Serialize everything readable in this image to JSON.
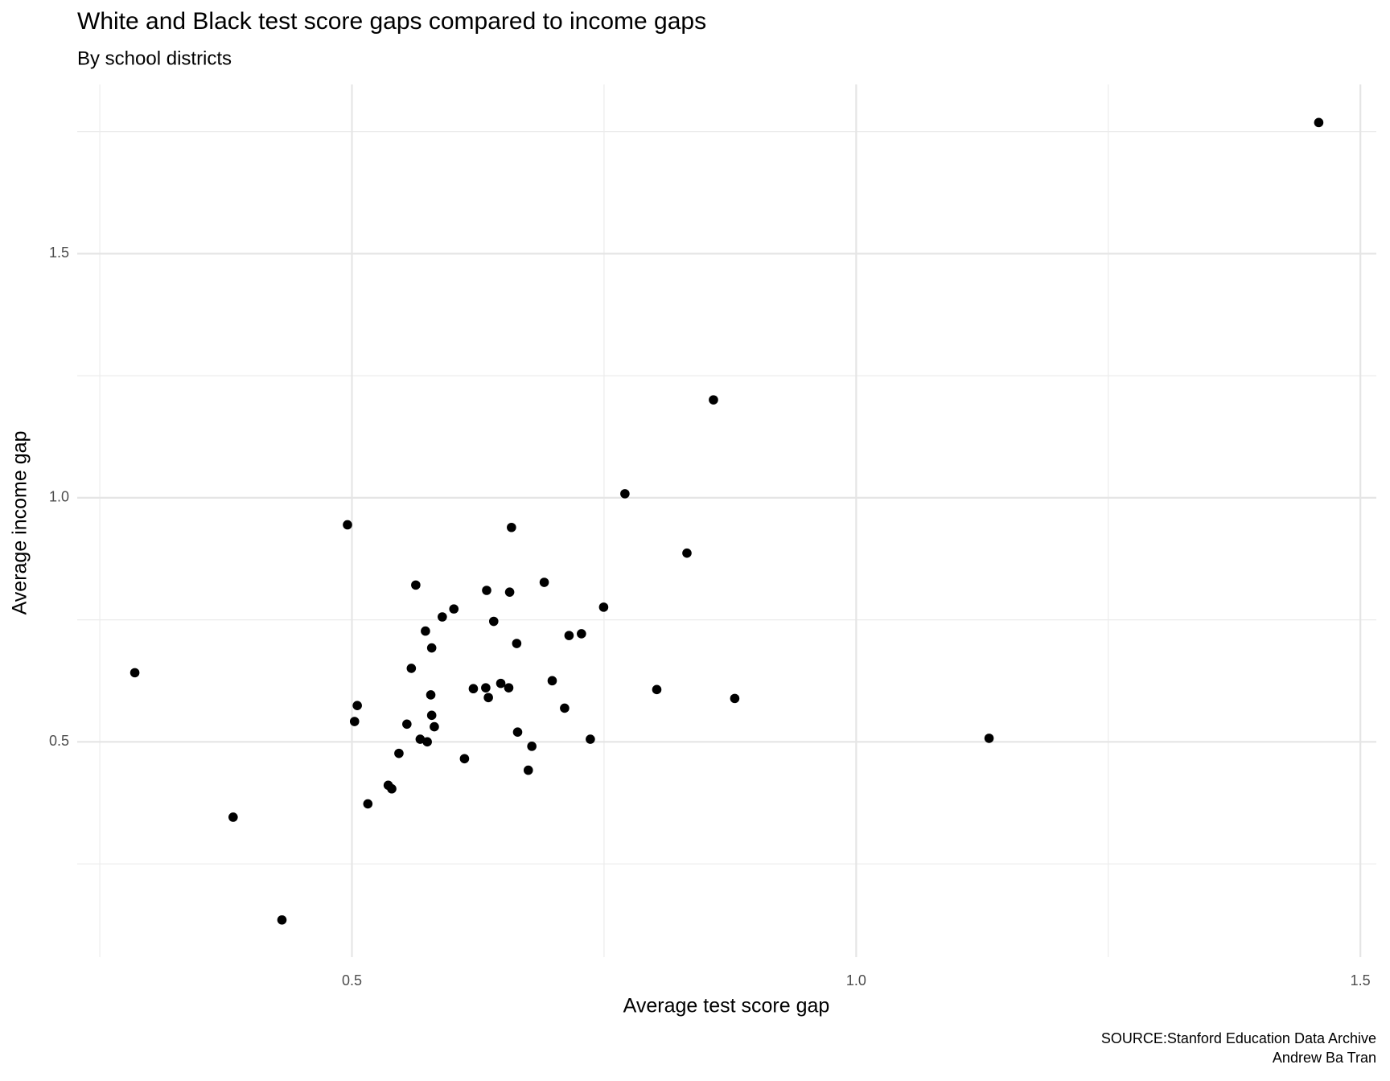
{
  "chart_data": {
    "type": "scatter",
    "title": "White and Black test score gaps compared to income gaps",
    "subtitle": "By school districts",
    "x_label": "Average test score gap",
    "y_label": "Average income gap",
    "caption": [
      "SOURCE:Stanford Education Data Archive",
      "Andrew Ba Tran"
    ],
    "color": "#000000",
    "grid": true,
    "xlim": [
      0.2276,
      1.5158
    ],
    "ylim": [
      0.059,
      1.8466
    ],
    "xticks": [
      0.5,
      {
        "value": 1,
        "label": "1.0"
      },
      1.5
    ],
    "yticks": [
      0.5,
      {
        "value": 1,
        "label": "1.0"
      },
      1.5
    ],
    "x_minor_ticks": [
      0.25,
      0.75,
      1.25
    ],
    "y_minor_ticks": [
      0.25,
      0.75,
      1.25,
      1.75
    ],
    "x": [
      1.4587,
      0.8585,
      0.7707,
      0.4956,
      0.6582,
      0.8322,
      0.5633,
      0.6336,
      0.6564,
      0.6907,
      0.6011,
      0.7496,
      0.5896,
      0.6406,
      0.5729,
      0.7153,
      0.7276,
      0.6634,
      0.5791,
      0.2847,
      0.5589,
      0.6204,
      0.6327,
      0.6476,
      0.6555,
      0.6986,
      0.8023,
      0.5782,
      0.6353,
      0.8796,
      0.5053,
      0.7109,
      0.5026,
      0.5791,
      0.5545,
      0.5817,
      0.6643,
      0.5677,
      0.5747,
      0.7364,
      1.1318,
      0.6784,
      0.5466,
      0.6116,
      0.6749,
      0.536,
      0.5395,
      0.5158,
      0.3822,
      0.4306
    ],
    "values": [
      1.7686,
      1.2005,
      1.0082,
      0.9446,
      0.9392,
      0.8866,
      0.8212,
      0.8103,
      0.8067,
      0.8267,
      0.7722,
      0.7759,
      0.7559,
      0.7468,
      0.7269,
      0.7178,
      0.7214,
      0.7015,
      0.6924,
      0.6416,
      0.6506,
      0.6089,
      0.6107,
      0.6198,
      0.6107,
      0.6252,
      0.6071,
      0.5962,
      0.5907,
      0.5889,
      0.5744,
      0.569,
      0.5417,
      0.5544,
      0.5363,
      0.5309,
      0.52,
      0.5054,
      0.5,
      0.5054,
      0.5073,
      0.4909,
      0.4764,
      0.4655,
      0.4419,
      0.4111,
      0.4038,
      0.373,
      0.3457,
      0.1352
    ]
  }
}
